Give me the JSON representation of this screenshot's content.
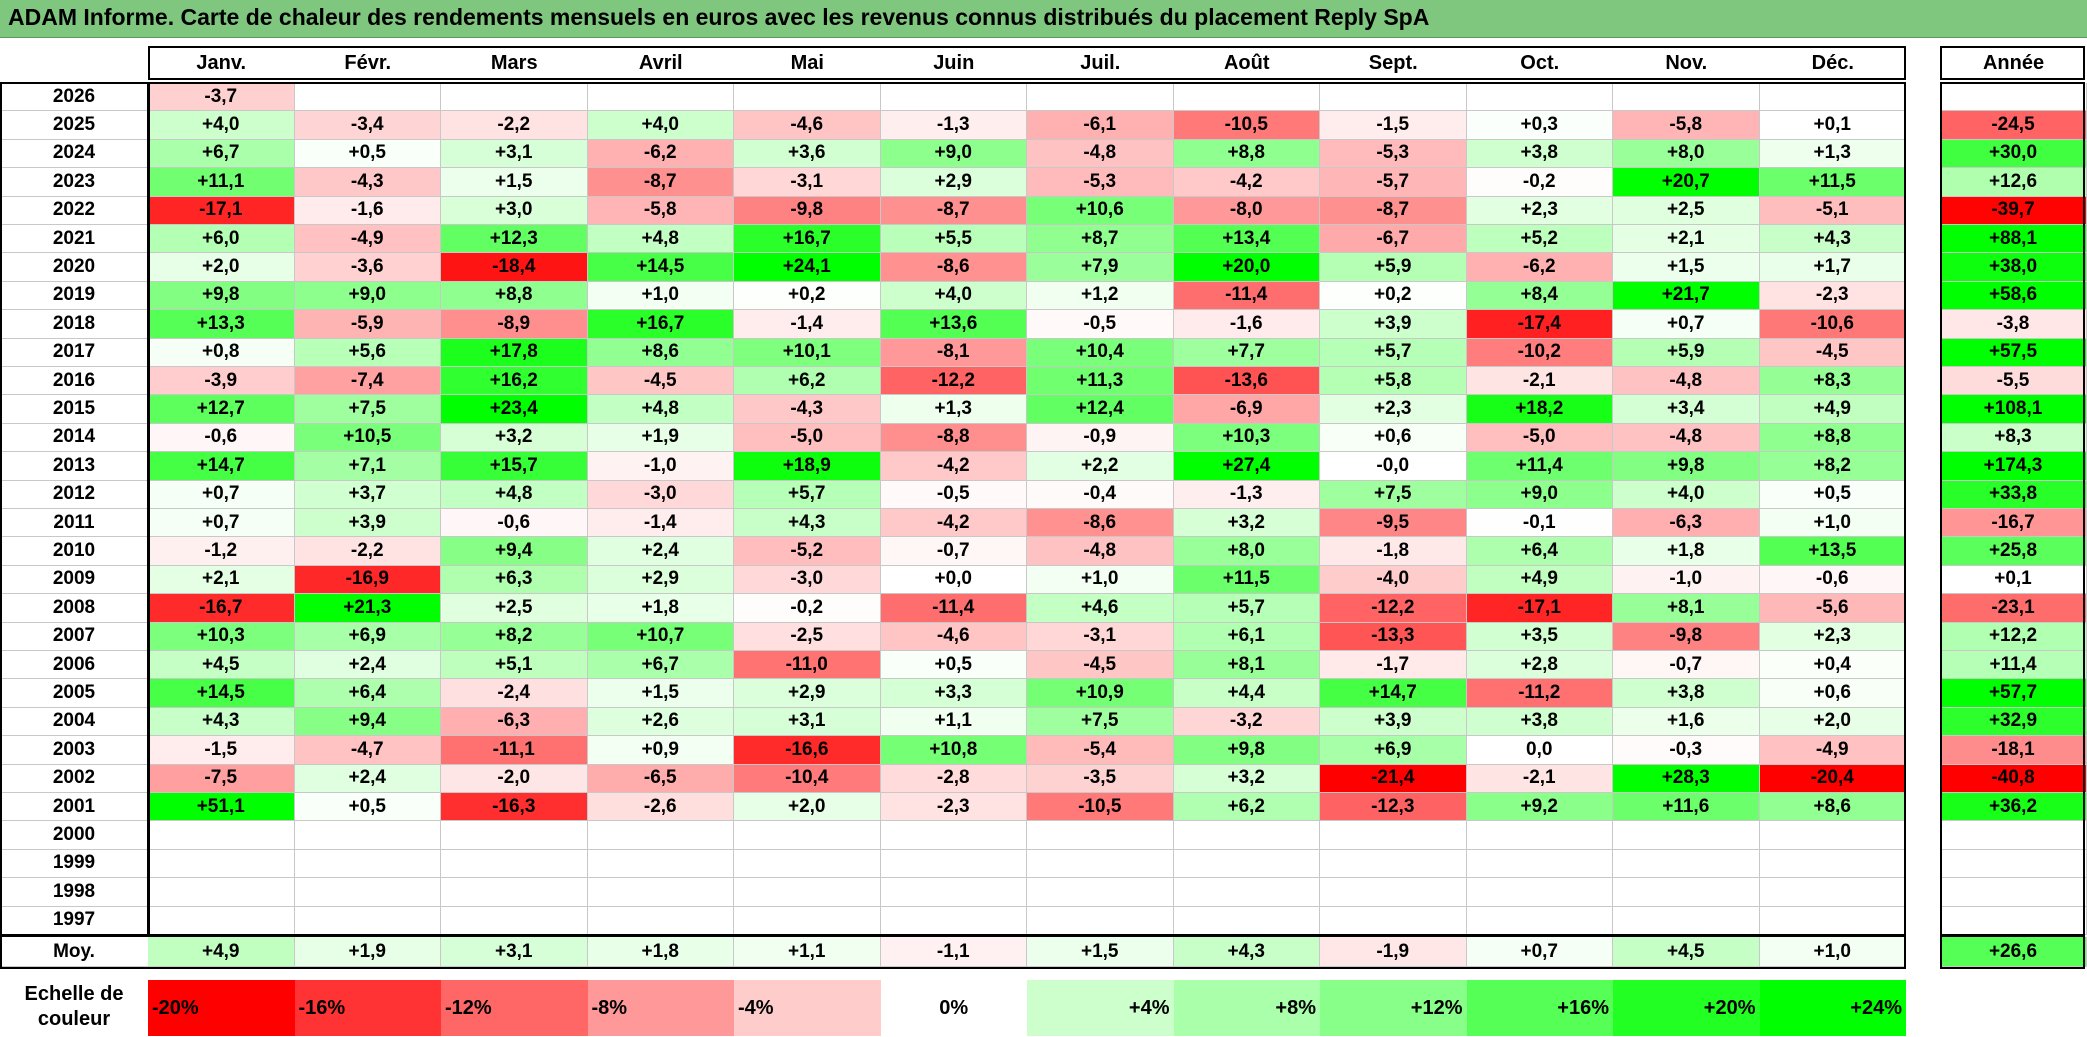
{
  "title": "ADAM Informe. Carte de chaleur des rendements mensuels en euros avec les revenus connus distribués du placement Reply SpA",
  "chart_data": {
    "type": "heatmap",
    "columns": [
      "Janv.",
      "Févr.",
      "Mars",
      "Avril",
      "Mai",
      "Juin",
      "Juil.",
      "Août",
      "Sept.",
      "Oct.",
      "Nov.",
      "Déc."
    ],
    "year_column": "Année",
    "rows": [
      {
        "year": "2026",
        "months": [
          "-3,7",
          "",
          "",
          "",
          "",
          "",
          "",
          "",
          "",
          "",
          "",
          ""
        ],
        "annual": ""
      },
      {
        "year": "2025",
        "months": [
          "+4,0",
          "-3,4",
          "-2,2",
          "+4,0",
          "-4,6",
          "-1,3",
          "-6,1",
          "-10,5",
          "-1,5",
          "+0,3",
          "-5,8",
          "+0,1"
        ],
        "annual": "-24,5"
      },
      {
        "year": "2024",
        "months": [
          "+6,7",
          "+0,5",
          "+3,1",
          "-6,2",
          "+3,6",
          "+9,0",
          "-4,8",
          "+8,8",
          "-5,3",
          "+3,8",
          "+8,0",
          "+1,3"
        ],
        "annual": "+30,0"
      },
      {
        "year": "2023",
        "months": [
          "+11,1",
          "-4,3",
          "+1,5",
          "-8,7",
          "-3,1",
          "+2,9",
          "-5,3",
          "-4,2",
          "-5,7",
          "-0,2",
          "+20,7",
          "+11,5"
        ],
        "annual": "+12,6"
      },
      {
        "year": "2022",
        "months": [
          "-17,1",
          "-1,6",
          "+3,0",
          "-5,8",
          "-9,8",
          "-8,7",
          "+10,6",
          "-8,0",
          "-8,7",
          "+2,3",
          "+2,5",
          "-5,1"
        ],
        "annual": "-39,7"
      },
      {
        "year": "2021",
        "months": [
          "+6,0",
          "-4,9",
          "+12,3",
          "+4,8",
          "+16,7",
          "+5,5",
          "+8,7",
          "+13,4",
          "-6,7",
          "+5,2",
          "+2,1",
          "+4,3"
        ],
        "annual": "+88,1"
      },
      {
        "year": "2020",
        "months": [
          "+2,0",
          "-3,6",
          "-18,4",
          "+14,5",
          "+24,1",
          "-8,6",
          "+7,9",
          "+20,0",
          "+5,9",
          "-6,2",
          "+1,5",
          "+1,7"
        ],
        "annual": "+38,0"
      },
      {
        "year": "2019",
        "months": [
          "+9,8",
          "+9,0",
          "+8,8",
          "+1,0",
          "+0,2",
          "+4,0",
          "+1,2",
          "-11,4",
          "+0,2",
          "+8,4",
          "+21,7",
          "-2,3"
        ],
        "annual": "+58,6"
      },
      {
        "year": "2018",
        "months": [
          "+13,3",
          "-5,9",
          "-8,9",
          "+16,7",
          "-1,4",
          "+13,6",
          "-0,5",
          "-1,6",
          "+3,9",
          "-17,4",
          "+0,7",
          "-10,6"
        ],
        "annual": "-3,8"
      },
      {
        "year": "2017",
        "months": [
          "+0,8",
          "+5,6",
          "+17,8",
          "+8,6",
          "+10,1",
          "-8,1",
          "+10,4",
          "+7,7",
          "+5,7",
          "-10,2",
          "+5,9",
          "-4,5"
        ],
        "annual": "+57,5"
      },
      {
        "year": "2016",
        "months": [
          "-3,9",
          "-7,4",
          "+16,2",
          "-4,5",
          "+6,2",
          "-12,2",
          "+11,3",
          "-13,6",
          "+5,8",
          "-2,1",
          "-4,8",
          "+8,3"
        ],
        "annual": "-5,5"
      },
      {
        "year": "2015",
        "months": [
          "+12,7",
          "+7,5",
          "+23,4",
          "+4,8",
          "-4,3",
          "+1,3",
          "+12,4",
          "-6,9",
          "+2,3",
          "+18,2",
          "+3,4",
          "+4,9"
        ],
        "annual": "+108,1"
      },
      {
        "year": "2014",
        "months": [
          "-0,6",
          "+10,5",
          "+3,2",
          "+1,9",
          "-5,0",
          "-8,8",
          "-0,9",
          "+10,3",
          "+0,6",
          "-5,0",
          "-4,8",
          "+8,8"
        ],
        "annual": "+8,3"
      },
      {
        "year": "2013",
        "months": [
          "+14,7",
          "+7,1",
          "+15,7",
          "-1,0",
          "+18,9",
          "-4,2",
          "+2,2",
          "+27,4",
          "-0,0",
          "+11,4",
          "+9,8",
          "+8,2"
        ],
        "annual": "+174,3"
      },
      {
        "year": "2012",
        "months": [
          "+0,7",
          "+3,7",
          "+4,8",
          "-3,0",
          "+5,7",
          "-0,5",
          "-0,4",
          "-1,3",
          "+7,5",
          "+9,0",
          "+4,0",
          "+0,5"
        ],
        "annual": "+33,8"
      },
      {
        "year": "2011",
        "months": [
          "+0,7",
          "+3,9",
          "-0,6",
          "-1,4",
          "+4,3",
          "-4,2",
          "-8,6",
          "+3,2",
          "-9,5",
          "-0,1",
          "-6,3",
          "+1,0"
        ],
        "annual": "-16,7"
      },
      {
        "year": "2010",
        "months": [
          "-1,2",
          "-2,2",
          "+9,4",
          "+2,4",
          "-5,2",
          "-0,7",
          "-4,8",
          "+8,0",
          "-1,8",
          "+6,4",
          "+1,8",
          "+13,5"
        ],
        "annual": "+25,8"
      },
      {
        "year": "2009",
        "months": [
          "+2,1",
          "-16,9",
          "+6,3",
          "+2,9",
          "-3,0",
          "+0,0",
          "+1,0",
          "+11,5",
          "-4,0",
          "+4,9",
          "-1,0",
          "-0,6"
        ],
        "annual": "+0,1"
      },
      {
        "year": "2008",
        "months": [
          "-16,7",
          "+21,3",
          "+2,5",
          "+1,8",
          "-0,2",
          "-11,4",
          "+4,6",
          "+5,7",
          "-12,2",
          "-17,1",
          "+8,1",
          "-5,6"
        ],
        "annual": "-23,1"
      },
      {
        "year": "2007",
        "months": [
          "+10,3",
          "+6,9",
          "+8,2",
          "+10,7",
          "-2,5",
          "-4,6",
          "-3,1",
          "+6,1",
          "-13,3",
          "+3,5",
          "-9,8",
          "+2,3"
        ],
        "annual": "+12,2"
      },
      {
        "year": "2006",
        "months": [
          "+4,5",
          "+2,4",
          "+5,1",
          "+6,7",
          "-11,0",
          "+0,5",
          "-4,5",
          "+8,1",
          "-1,7",
          "+2,8",
          "-0,7",
          "+0,4"
        ],
        "annual": "+11,4"
      },
      {
        "year": "2005",
        "months": [
          "+14,5",
          "+6,4",
          "-2,4",
          "+1,5",
          "+2,9",
          "+3,3",
          "+10,9",
          "+4,4",
          "+14,7",
          "-11,2",
          "+3,8",
          "+0,6"
        ],
        "annual": "+57,7"
      },
      {
        "year": "2004",
        "months": [
          "+4,3",
          "+9,4",
          "-6,3",
          "+2,6",
          "+3,1",
          "+1,1",
          "+7,5",
          "-3,2",
          "+3,9",
          "+3,8",
          "+1,6",
          "+2,0"
        ],
        "annual": "+32,9"
      },
      {
        "year": "2003",
        "months": [
          "-1,5",
          "-4,7",
          "-11,1",
          "+0,9",
          "-16,6",
          "+10,8",
          "-5,4",
          "+9,8",
          "+6,9",
          "0,0",
          "-0,3",
          "-4,9"
        ],
        "annual": "-18,1"
      },
      {
        "year": "2002",
        "months": [
          "-7,5",
          "+2,4",
          "-2,0",
          "-6,5",
          "-10,4",
          "-2,8",
          "-3,5",
          "+3,2",
          "-21,4",
          "-2,1",
          "+28,3",
          "-20,4"
        ],
        "annual": "-40,8"
      },
      {
        "year": "2001",
        "months": [
          "+51,1",
          "+0,5",
          "-16,3",
          "-2,6",
          "+2,0",
          "-2,3",
          "-10,5",
          "+6,2",
          "-12,3",
          "+9,2",
          "+11,6",
          "+8,6"
        ],
        "annual": "+36,2"
      },
      {
        "year": "2000",
        "months": [
          "",
          "",
          "",
          "",
          "",
          "",
          "",
          "",
          "",
          "",
          "",
          ""
        ],
        "annual": ""
      },
      {
        "year": "1999",
        "months": [
          "",
          "",
          "",
          "",
          "",
          "",
          "",
          "",
          "",
          "",
          "",
          ""
        ],
        "annual": ""
      },
      {
        "year": "1998",
        "months": [
          "",
          "",
          "",
          "",
          "",
          "",
          "",
          "",
          "",
          "",
          "",
          ""
        ],
        "annual": ""
      },
      {
        "year": "1997",
        "months": [
          "",
          "",
          "",
          "",
          "",
          "",
          "",
          "",
          "",
          "",
          "",
          ""
        ],
        "annual": ""
      }
    ],
    "average": {
      "label": "Moy.",
      "months": [
        "+4,9",
        "+1,9",
        "+3,1",
        "+1,8",
        "+1,1",
        "-1,1",
        "+1,5",
        "+4,3",
        "-1,9",
        "+0,7",
        "+4,5",
        "+1,0"
      ],
      "annual": "+26,6"
    },
    "scale": {
      "label": "Echelle de couleur",
      "steps": [
        "-20%",
        "-16%",
        "-12%",
        "-8%",
        "-4%",
        "0%",
        "+4%",
        "+8%",
        "+12%",
        "+16%",
        "+20%",
        "+24%"
      ],
      "colors": [
        "#ff0000",
        "#ff3333",
        "#ff6666",
        "#ff9999",
        "#ffcccc",
        "#ffffff",
        "#ccffcc",
        "#aaffaa",
        "#88ff88",
        "#55ff55",
        "#22ff22",
        "#00ff00"
      ]
    },
    "colors": {
      "negative_max": "#ff0000",
      "neutral": "#ffffff",
      "positive_max": "#00ff00",
      "title_bg": "#7fc67f"
    }
  }
}
